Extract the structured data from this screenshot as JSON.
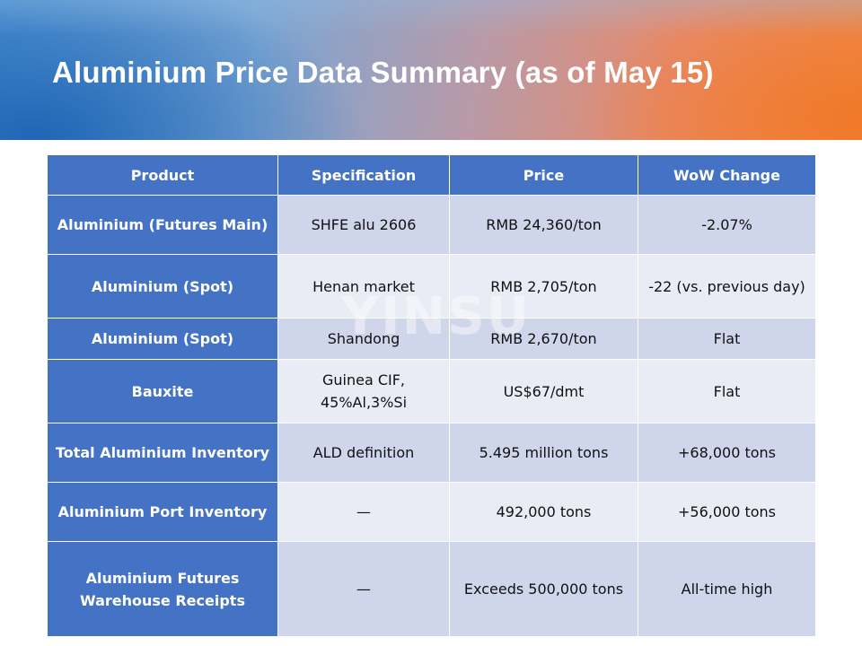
{
  "header": {
    "title": "Aluminium Price Data Summary (as of May 15)"
  },
  "watermark": "YINSU",
  "colors": {
    "header_blue": "#4472c4",
    "row_band_dark": "#cfd5ea",
    "row_band_light": "#e9ebf5",
    "banner_orange": "#f08a4a",
    "banner_blue": "#4a8fd0"
  },
  "table": {
    "headers": [
      "Product",
      "Specification",
      "Price",
      "WoW Change"
    ],
    "rows": [
      {
        "product": "Aluminium (Futures Main)",
        "spec": "SHFE alu 2606",
        "price": "RMB 24,360/ton",
        "change": "-2.07%"
      },
      {
        "product": "Aluminium (Spot)",
        "spec": "Henan market",
        "price": "RMB 2,705/ton",
        "change": "-22 (vs. previous day)"
      },
      {
        "product": "Aluminium (Spot)",
        "spec": "Shandong",
        "price": "RMB 2,670/ton",
        "change": "Flat"
      },
      {
        "product": "Bauxite",
        "spec": "Guinea CIF, 45%Al,3%Si",
        "price": "US$67/dmt",
        "change": "Flat"
      },
      {
        "product": "Total Aluminium Inventory",
        "spec": "ALD definition",
        "price": "5.495 million tons",
        "change": "+68,000 tons"
      },
      {
        "product": "Aluminium Port Inventory",
        "spec": "—",
        "price": "492,000 tons",
        "change": "+56,000 tons"
      },
      {
        "product": "Aluminium Futures Warehouse Receipts",
        "spec": "—",
        "price": "Exceeds 500,000 tons",
        "change": "All-time high"
      }
    ]
  }
}
